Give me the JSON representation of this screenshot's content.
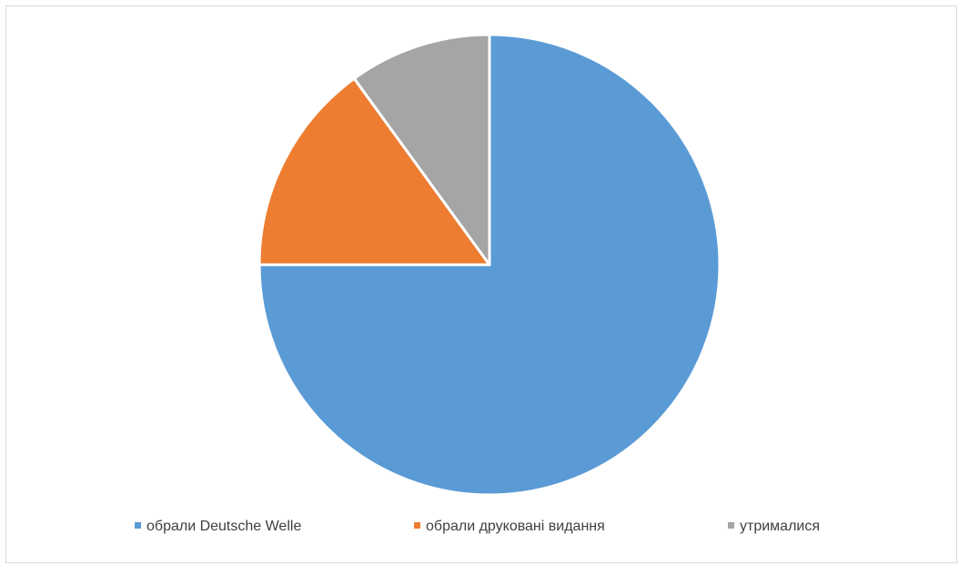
{
  "chart_data": {
    "type": "pie",
    "title": "",
    "categories": [
      "обрали Deutsche Welle",
      "обрали друковані видання",
      "утрималися"
    ],
    "values": [
      75,
      15,
      10
    ],
    "colors": [
      "#5B9BD5",
      "#ED7D31",
      "#A5A5A5"
    ],
    "start_angle_deg": 0,
    "direction": "clockwise",
    "legend_position": "bottom"
  }
}
